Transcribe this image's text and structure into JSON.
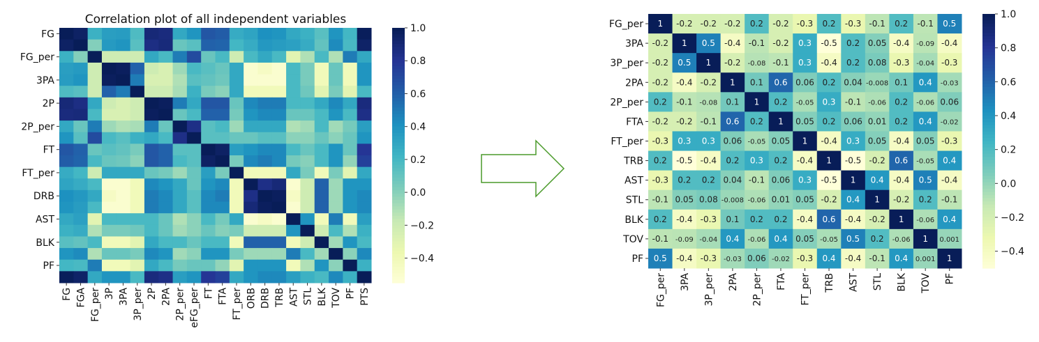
{
  "colorscale": [
    "#ffffd9",
    "#edf8b1",
    "#c7e9b4",
    "#7fcdbb",
    "#41b6c4",
    "#1d91c0",
    "#225ea8",
    "#253494",
    "#081d58"
  ],
  "chart_data": [
    {
      "type": "heatmap",
      "title": "Correlation plot of all independent variables",
      "row_labels": [
        "FG",
        "",
        "FG_per",
        "",
        "3PA",
        "",
        "2P",
        "",
        "2P_per",
        "",
        "FT",
        "",
        "FT_per",
        "",
        "DRB",
        "",
        "AST",
        "",
        "BLK",
        "",
        "PF",
        ""
      ],
      "col_labels": [
        "FG",
        "FGA",
        "FG_per",
        "3P",
        "3PA",
        "3P_per",
        "2P",
        "2PA",
        "2P_per",
        "eFG_per",
        "FT",
        "FTA",
        "FT_per",
        "ORB",
        "DRB",
        "TRB",
        "AST",
        "STL",
        "BLK",
        "TOV",
        "PF",
        "PTS"
      ],
      "values": [
        [
          1.0,
          0.96,
          0.25,
          0.35,
          0.36,
          0.18,
          0.9,
          0.88,
          0.3,
          0.4,
          0.65,
          0.62,
          0.28,
          0.32,
          0.42,
          0.4,
          0.3,
          0.25,
          0.15,
          0.4,
          0.22,
          0.99
        ],
        [
          0.96,
          1.0,
          0.02,
          0.37,
          0.4,
          0.15,
          0.86,
          0.89,
          0.1,
          0.15,
          0.6,
          0.59,
          0.22,
          0.28,
          0.38,
          0.36,
          0.34,
          0.28,
          0.12,
          0.44,
          0.2,
          0.95
        ],
        [
          0.25,
          0.02,
          1.0,
          -0.2,
          -0.2,
          -0.2,
          0.3,
          0.2,
          0.5,
          0.7,
          0.1,
          0.2,
          -0.2,
          0.2,
          0.3,
          0.2,
          -0.3,
          -0.1,
          0.2,
          -0.1,
          0.5,
          0.3
        ],
        [
          0.35,
          0.37,
          -0.2,
          1.0,
          0.98,
          0.6,
          -0.2,
          -0.25,
          -0.05,
          0.2,
          0.15,
          0.1,
          0.3,
          -0.5,
          -0.45,
          -0.5,
          0.2,
          0.05,
          -0.4,
          0.1,
          -0.4,
          0.4
        ],
        [
          0.36,
          0.4,
          -0.2,
          0.98,
          1.0,
          0.5,
          -0.25,
          -0.25,
          -0.1,
          0.15,
          0.12,
          0.08,
          0.3,
          -0.5,
          -0.5,
          -0.5,
          0.2,
          0.05,
          -0.4,
          0.1,
          -0.4,
          0.4
        ],
        [
          0.18,
          0.15,
          -0.2,
          0.6,
          0.5,
          1.0,
          -0.2,
          -0.2,
          -0.08,
          0.25,
          0.05,
          0.0,
          0.3,
          -0.4,
          -0.4,
          -0.4,
          0.2,
          0.08,
          -0.3,
          0.05,
          -0.3,
          0.2
        ],
        [
          0.9,
          0.86,
          0.3,
          -0.2,
          -0.25,
          -0.2,
          1.0,
          0.98,
          0.5,
          0.3,
          0.65,
          0.65,
          0.1,
          0.45,
          0.5,
          0.5,
          0.2,
          0.2,
          0.3,
          0.45,
          0.3,
          0.88
        ],
        [
          0.88,
          0.89,
          0.2,
          -0.25,
          -0.25,
          -0.2,
          0.98,
          1.0,
          0.1,
          0.2,
          0.6,
          0.6,
          0.06,
          0.4,
          0.45,
          0.45,
          0.1,
          0.1,
          0.2,
          0.4,
          0.2,
          0.85
        ],
        [
          0.3,
          0.1,
          0.5,
          -0.05,
          -0.1,
          -0.08,
          0.5,
          0.1,
          1.0,
          0.85,
          0.15,
          0.2,
          -0.05,
          0.3,
          0.3,
          0.3,
          -0.1,
          -0.06,
          0.2,
          -0.06,
          0.06,
          0.35
        ],
        [
          0.4,
          0.15,
          0.7,
          0.2,
          0.15,
          0.25,
          0.3,
          0.2,
          0.85,
          1.0,
          0.15,
          0.15,
          0.1,
          0.1,
          0.15,
          0.15,
          0.0,
          0.0,
          0.1,
          0.0,
          0.1,
          0.4
        ],
        [
          0.65,
          0.6,
          0.1,
          0.15,
          0.12,
          0.05,
          0.65,
          0.6,
          0.15,
          0.15,
          1.0,
          0.96,
          0.35,
          0.4,
          0.45,
          0.45,
          0.2,
          0.1,
          0.2,
          0.4,
          0.1,
          0.8
        ],
        [
          0.62,
          0.59,
          0.2,
          0.1,
          0.08,
          0.0,
          0.65,
          0.6,
          0.2,
          0.15,
          0.96,
          1.0,
          0.05,
          0.45,
          0.5,
          0.45,
          0.06,
          0.01,
          0.2,
          0.4,
          -0.02,
          0.75
        ],
        [
          0.28,
          0.22,
          -0.2,
          0.3,
          0.3,
          0.3,
          0.1,
          0.06,
          -0.05,
          0.1,
          0.35,
          0.05,
          1.0,
          -0.4,
          -0.4,
          -0.4,
          0.3,
          0.05,
          -0.4,
          0.05,
          -0.3,
          0.3
        ],
        [
          0.32,
          0.28,
          0.2,
          -0.5,
          -0.5,
          -0.4,
          0.45,
          0.4,
          0.3,
          0.1,
          0.4,
          0.45,
          -0.4,
          1.0,
          0.85,
          0.9,
          -0.5,
          -0.2,
          0.6,
          -0.05,
          0.4,
          0.4
        ],
        [
          0.42,
          0.38,
          0.3,
          -0.45,
          -0.5,
          -0.4,
          0.5,
          0.45,
          0.3,
          0.15,
          0.45,
          0.5,
          -0.4,
          0.85,
          1.0,
          0.98,
          -0.45,
          -0.2,
          0.6,
          -0.05,
          0.4,
          0.45
        ],
        [
          0.4,
          0.36,
          0.2,
          -0.5,
          -0.5,
          -0.4,
          0.5,
          0.45,
          0.3,
          0.15,
          0.45,
          0.45,
          -0.4,
          0.9,
          0.98,
          1.0,
          -0.5,
          -0.2,
          0.6,
          -0.05,
          0.4,
          0.45
        ],
        [
          0.3,
          0.34,
          -0.3,
          0.2,
          0.2,
          0.2,
          0.2,
          0.1,
          -0.1,
          0.0,
          0.2,
          0.06,
          0.3,
          -0.5,
          -0.45,
          -0.5,
          1.0,
          0.4,
          -0.4,
          0.5,
          -0.4,
          0.35
        ],
        [
          0.25,
          0.28,
          -0.1,
          0.05,
          0.05,
          0.08,
          0.2,
          0.1,
          -0.06,
          0.0,
          0.1,
          0.01,
          0.05,
          -0.2,
          -0.2,
          -0.2,
          0.4,
          1.0,
          -0.2,
          0.2,
          -0.1,
          0.25
        ],
        [
          0.15,
          0.12,
          0.2,
          -0.4,
          -0.4,
          -0.3,
          0.3,
          0.2,
          0.2,
          0.1,
          0.2,
          0.2,
          -0.4,
          0.6,
          0.6,
          0.6,
          -0.4,
          -0.2,
          1.0,
          -0.06,
          0.4,
          0.2
        ],
        [
          0.4,
          0.44,
          -0.1,
          0.1,
          0.1,
          0.05,
          0.45,
          0.4,
          -0.06,
          0.0,
          0.4,
          0.4,
          0.05,
          -0.05,
          -0.05,
          -0.05,
          0.5,
          0.2,
          -0.06,
          1.0,
          0.0,
          0.45
        ],
        [
          0.22,
          0.2,
          0.5,
          -0.4,
          -0.4,
          -0.3,
          0.3,
          0.2,
          0.06,
          0.1,
          0.1,
          -0.02,
          -0.3,
          0.4,
          0.4,
          0.4,
          -0.4,
          -0.1,
          0.4,
          0.0,
          1.0,
          0.25
        ],
        [
          0.99,
          0.95,
          0.3,
          0.4,
          0.4,
          0.2,
          0.88,
          0.85,
          0.35,
          0.4,
          0.8,
          0.75,
          0.3,
          0.4,
          0.45,
          0.45,
          0.35,
          0.25,
          0.2,
          0.45,
          0.25,
          1.0
        ]
      ],
      "colorbar_ticks": [
        "1.0",
        "0.8",
        "0.6",
        "0.4",
        "0.2",
        "0.0",
        "−0.2",
        "−0.4"
      ],
      "vmin": -0.55,
      "vmax": 1.0
    },
    {
      "type": "heatmap",
      "title": "",
      "row_labels": [
        "FG_per",
        "3PA",
        "3P_per",
        "2PA",
        "2P_per",
        "FTA",
        "FT_per",
        "TRB",
        "AST",
        "STL",
        "BLK",
        "TOV",
        "PF"
      ],
      "col_labels": [
        "FG_per",
        "3PA",
        "3P_per",
        "2PA",
        "2P_per",
        "FTA",
        "FT_per",
        "TRB",
        "AST",
        "STL",
        "BLK",
        "TOV",
        "PF"
      ],
      "values": [
        [
          1,
          -0.2,
          -0.2,
          -0.2,
          0.2,
          -0.2,
          -0.3,
          0.2,
          -0.3,
          -0.1,
          0.2,
          -0.1,
          0.5
        ],
        [
          -0.2,
          1,
          0.5,
          -0.4,
          -0.1,
          -0.2,
          0.3,
          -0.5,
          0.2,
          0.05,
          -0.4,
          -0.09,
          -0.4
        ],
        [
          -0.2,
          0.5,
          1,
          -0.2,
          -0.08,
          -0.1,
          0.3,
          -0.4,
          0.2,
          0.08,
          -0.3,
          -0.04,
          -0.3
        ],
        [
          -0.2,
          -0.4,
          -0.2,
          1,
          0.1,
          0.6,
          0.06,
          0.2,
          0.04,
          -0.008,
          0.1,
          0.4,
          -0.03
        ],
        [
          0.2,
          -0.1,
          -0.08,
          0.1,
          1,
          0.2,
          -0.05,
          0.3,
          -0.1,
          -0.06,
          0.2,
          -0.06,
          0.06
        ],
        [
          -0.2,
          -0.2,
          -0.1,
          0.6,
          0.2,
          1,
          0.05,
          0.2,
          0.06,
          0.01,
          0.2,
          0.4,
          -0.02
        ],
        [
          -0.3,
          0.3,
          0.3,
          0.06,
          -0.05,
          0.05,
          1,
          -0.4,
          0.3,
          0.05,
          -0.4,
          0.05,
          -0.3
        ],
        [
          0.2,
          -0.5,
          -0.4,
          0.2,
          0.3,
          0.2,
          -0.4,
          1,
          -0.5,
          -0.2,
          0.6,
          -0.05,
          0.4
        ],
        [
          -0.3,
          0.2,
          0.2,
          0.04,
          -0.1,
          0.06,
          0.3,
          -0.5,
          1,
          0.4,
          -0.4,
          0.5,
          -0.4
        ],
        [
          -0.1,
          0.05,
          0.08,
          -0.008,
          -0.06,
          0.01,
          0.05,
          -0.2,
          0.4,
          1,
          -0.2,
          0.2,
          -0.1
        ],
        [
          0.2,
          -0.4,
          -0.3,
          0.1,
          0.2,
          0.2,
          -0.4,
          0.6,
          -0.4,
          -0.2,
          1,
          -0.06,
          0.4
        ],
        [
          -0.1,
          -0.09,
          -0.04,
          0.4,
          -0.06,
          0.4,
          0.05,
          -0.05,
          0.5,
          0.2,
          -0.06,
          1,
          0.001
        ],
        [
          0.5,
          -0.4,
          -0.3,
          -0.03,
          0.06,
          -0.02,
          -0.3,
          0.4,
          -0.4,
          -0.1,
          0.4,
          0.001,
          1
        ]
      ],
      "colorbar_ticks": [
        "1.0",
        "0.8",
        "0.6",
        "0.4",
        "0.2",
        "0.0",
        "−0.2",
        "−0.4"
      ],
      "vmin": -0.5,
      "vmax": 1.0
    }
  ]
}
